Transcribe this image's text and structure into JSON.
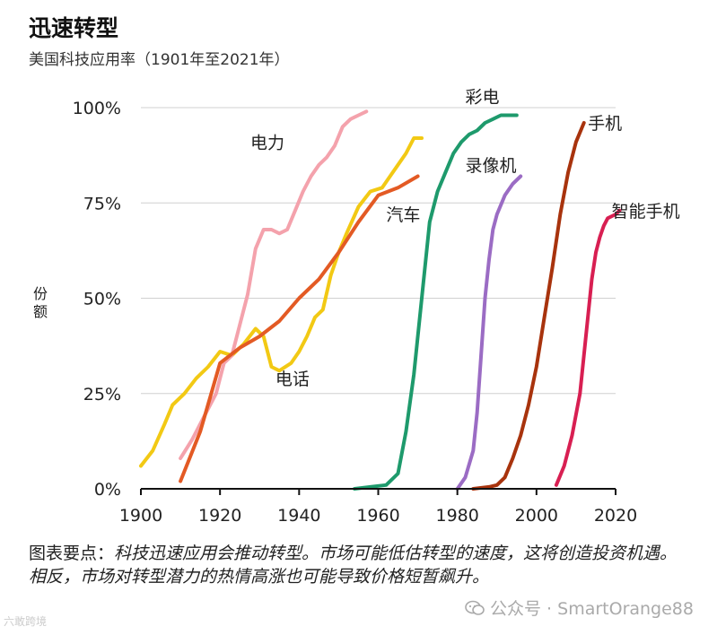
{
  "title": "迅速转型",
  "subtitle": "美国科技应用率（1901年至2021年）",
  "takeaway": {
    "label": "图表要点：",
    "text": "科技迅速应用会推动转型。市场可能低估转型的速度，这将创造投资机遇。相反，市场对转型潜力的热情高涨也可能导致价格短暂飙升。"
  },
  "watermark": {
    "icon": "wechat-icon",
    "text": "公众号 · SmartOrange88"
  },
  "corner_mark": "六敢跨境",
  "chart_data": {
    "type": "line",
    "title": "迅速转型",
    "subtitle": "美国科技应用率（1901年至2021年）",
    "xlabel": "",
    "ylabel": "份额",
    "xlim": [
      1900,
      2020
    ],
    "ylim": [
      0,
      100
    ],
    "x_ticks": [
      1900,
      1920,
      1940,
      1960,
      1980,
      2000,
      2020
    ],
    "x_tick_labels": [
      "1900",
      "1920",
      "1940",
      "1960",
      "1980",
      "2000",
      "2020"
    ],
    "y_ticks": [
      0,
      25,
      50,
      75,
      100
    ],
    "y_tick_labels": [
      "0%",
      "25%",
      "50%",
      "75%",
      "100%"
    ],
    "grid": "horizontal",
    "series": [
      {
        "name": "电话",
        "color": "#f2c914",
        "points": [
          [
            1900,
            6
          ],
          [
            1903,
            10
          ],
          [
            1906,
            17
          ],
          [
            1908,
            22
          ],
          [
            1911,
            25
          ],
          [
            1914,
            29
          ],
          [
            1917,
            32
          ],
          [
            1920,
            36
          ],
          [
            1923,
            35
          ],
          [
            1926,
            38
          ],
          [
            1929,
            42
          ],
          [
            1931,
            40
          ],
          [
            1933,
            32
          ],
          [
            1935,
            31
          ],
          [
            1938,
            33
          ],
          [
            1940,
            36
          ],
          [
            1942,
            40
          ],
          [
            1944,
            45
          ],
          [
            1946,
            47
          ],
          [
            1948,
            56
          ],
          [
            1950,
            62
          ],
          [
            1952,
            67
          ],
          [
            1955,
            74
          ],
          [
            1958,
            78
          ],
          [
            1961,
            79
          ],
          [
            1963,
            82
          ],
          [
            1965,
            85
          ],
          [
            1967,
            88
          ],
          [
            1969,
            92
          ],
          [
            1971,
            92
          ]
        ]
      },
      {
        "name": "电力",
        "color": "#f4a2ac",
        "points": [
          [
            1910,
            8
          ],
          [
            1913,
            13
          ],
          [
            1916,
            19
          ],
          [
            1919,
            25
          ],
          [
            1921,
            33
          ],
          [
            1923,
            35
          ],
          [
            1925,
            43
          ],
          [
            1927,
            51
          ],
          [
            1929,
            63
          ],
          [
            1931,
            68
          ],
          [
            1933,
            68
          ],
          [
            1935,
            67
          ],
          [
            1937,
            68
          ],
          [
            1939,
            73
          ],
          [
            1941,
            78
          ],
          [
            1943,
            82
          ],
          [
            1945,
            85
          ],
          [
            1947,
            87
          ],
          [
            1949,
            90
          ],
          [
            1951,
            95
          ],
          [
            1953,
            97
          ],
          [
            1955,
            98
          ],
          [
            1957,
            99
          ]
        ]
      },
      {
        "name": "汽车",
        "color": "#e35a24",
        "points": [
          [
            1910,
            2
          ],
          [
            1915,
            15
          ],
          [
            1920,
            33
          ],
          [
            1925,
            37
          ],
          [
            1930,
            40
          ],
          [
            1935,
            44
          ],
          [
            1940,
            50
          ],
          [
            1945,
            55
          ],
          [
            1950,
            62
          ],
          [
            1955,
            70
          ],
          [
            1960,
            77
          ],
          [
            1965,
            79
          ],
          [
            1970,
            82
          ]
        ]
      },
      {
        "name": "彩电",
        "color": "#1e9a6c",
        "points": [
          [
            1954,
            0
          ],
          [
            1958,
            0.5
          ],
          [
            1962,
            1
          ],
          [
            1965,
            4
          ],
          [
            1967,
            15
          ],
          [
            1969,
            30
          ],
          [
            1971,
            50
          ],
          [
            1973,
            70
          ],
          [
            1975,
            78
          ],
          [
            1977,
            83
          ],
          [
            1979,
            88
          ],
          [
            1981,
            91
          ],
          [
            1983,
            93
          ],
          [
            1985,
            94
          ],
          [
            1987,
            96
          ],
          [
            1989,
            97
          ],
          [
            1991,
            98
          ],
          [
            1993,
            98
          ],
          [
            1995,
            98
          ]
        ]
      },
      {
        "name": "录像机",
        "color": "#9b6cc4",
        "points": [
          [
            1980,
            0
          ],
          [
            1982,
            3
          ],
          [
            1984,
            10
          ],
          [
            1985,
            20
          ],
          [
            1986,
            35
          ],
          [
            1987,
            50
          ],
          [
            1988,
            60
          ],
          [
            1989,
            68
          ],
          [
            1990,
            72
          ],
          [
            1992,
            77
          ],
          [
            1994,
            80
          ],
          [
            1996,
            82
          ]
        ]
      },
      {
        "name": "手机",
        "color": "#a8330d",
        "points": [
          [
            1984,
            0
          ],
          [
            1988,
            0.5
          ],
          [
            1990,
            1
          ],
          [
            1992,
            3
          ],
          [
            1994,
            8
          ],
          [
            1996,
            14
          ],
          [
            1998,
            22
          ],
          [
            2000,
            32
          ],
          [
            2002,
            45
          ],
          [
            2004,
            58
          ],
          [
            2006,
            72
          ],
          [
            2008,
            83
          ],
          [
            2010,
            91
          ],
          [
            2012,
            96
          ]
        ]
      },
      {
        "name": "智能手机",
        "color": "#d81f52",
        "points": [
          [
            2005,
            1
          ],
          [
            2007,
            6
          ],
          [
            2009,
            14
          ],
          [
            2011,
            25
          ],
          [
            2012,
            35
          ],
          [
            2013,
            45
          ],
          [
            2014,
            55
          ],
          [
            2015,
            62
          ],
          [
            2016,
            66
          ],
          [
            2017,
            69
          ],
          [
            2018,
            71
          ],
          [
            2020,
            72
          ],
          [
            2021,
            73
          ]
        ]
      }
    ],
    "annotations": [
      {
        "series": "电力",
        "text": "电力"
      },
      {
        "series": "汽车",
        "text": "汽车"
      },
      {
        "series": "电话",
        "text": "电话"
      },
      {
        "series": "彩电",
        "text": "彩电"
      },
      {
        "series": "录像机",
        "text": "录像机"
      },
      {
        "series": "手机",
        "text": "手机"
      },
      {
        "series": "智能手机",
        "text": "智能手机"
      }
    ]
  }
}
